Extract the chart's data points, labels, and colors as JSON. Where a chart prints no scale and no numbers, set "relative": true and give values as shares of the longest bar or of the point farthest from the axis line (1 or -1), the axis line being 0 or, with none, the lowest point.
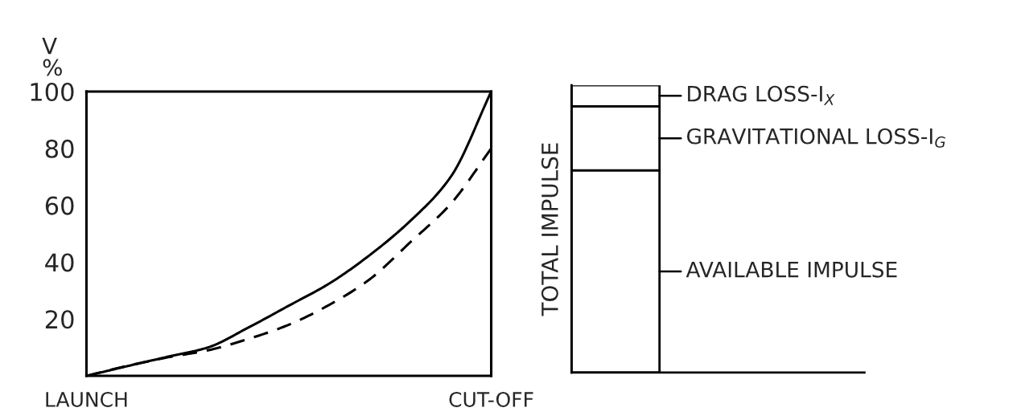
{
  "chart_data": [
    {
      "type": "line",
      "ylabel": "V\n%",
      "categories": [
        "LAUNCH",
        null,
        null,
        null,
        null,
        null,
        null,
        null,
        null,
        null,
        "CUT-OFF"
      ],
      "series": [
        {
          "color": "#000000",
          "line_style": "solid",
          "values": [
            0,
            3.4,
            6.7,
            10,
            17,
            24.7,
            32.5,
            42.5,
            54.5,
            70,
            100
          ]
        },
        {
          "color": "#000000",
          "line_style": "dashed",
          "values": [
            0,
            3.5,
            6.5,
            9,
            13,
            18,
            25,
            34,
            47,
            60.5,
            80
          ]
        }
      ],
      "ylim": [
        0,
        100
      ],
      "yticks": [
        20,
        40,
        60,
        80,
        100
      ],
      "grid": false,
      "legend": false,
      "marker": "none"
    },
    {
      "type": "bar",
      "stacked": true,
      "relative": true,
      "ylabel": "TOTAL IMPULSE",
      "categories": [
        null
      ],
      "series": [
        {
          "name": "AVAILABLE IMPULSE",
          "color": "#ffffff",
          "values": [
            0.704
          ]
        },
        {
          "name": "GRAVITATIONAL LOSS-I$_{G}$",
          "color": "#ffffff",
          "values": [
            0.223
          ]
        },
        {
          "name": "DRAG LOSS-I$_{X}$",
          "color": "#ffffff",
          "values": [
            0.073
          ]
        }
      ],
      "grid": false,
      "legend": "right"
    }
  ]
}
